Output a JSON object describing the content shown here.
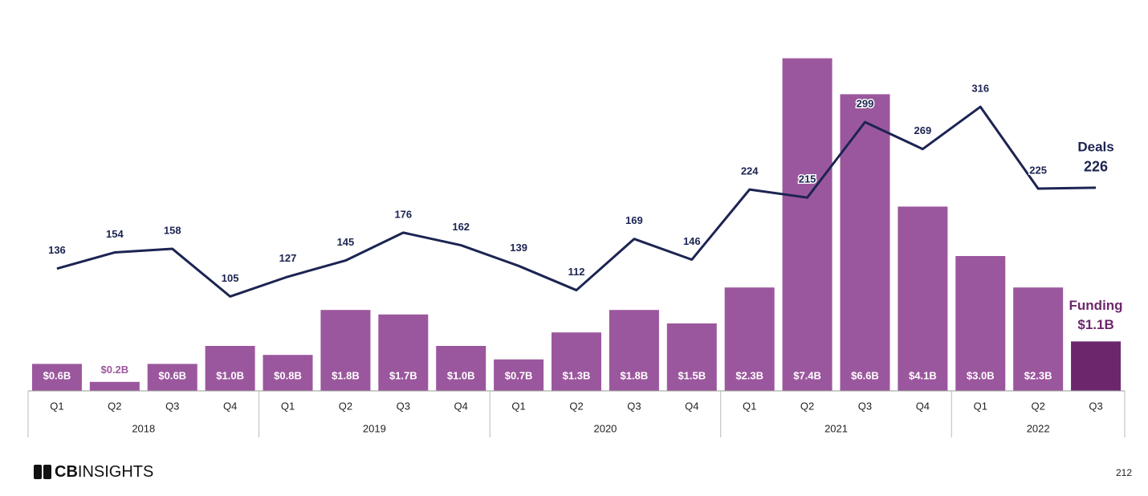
{
  "chart_data": {
    "type": "bar_line",
    "groups": [
      {
        "label": "2018",
        "categories": [
          "Q1",
          "Q2",
          "Q3",
          "Q4"
        ]
      },
      {
        "label": "2019",
        "categories": [
          "Q1",
          "Q2",
          "Q3",
          "Q4"
        ]
      },
      {
        "label": "2020",
        "categories": [
          "Q1",
          "Q2",
          "Q3",
          "Q4"
        ]
      },
      {
        "label": "2021",
        "categories": [
          "Q1",
          "Q2",
          "Q3",
          "Q4"
        ]
      },
      {
        "label": "2022",
        "categories": [
          "Q1",
          "Q2",
          "Q3"
        ]
      }
    ],
    "series": [
      {
        "name": "Funding",
        "type": "bar",
        "color": "#9b579d",
        "last_color": "#6c276c",
        "values": [
          0.6,
          0.2,
          0.6,
          1.0,
          0.8,
          1.8,
          1.7,
          1.0,
          0.7,
          1.3,
          1.8,
          1.5,
          2.3,
          7.4,
          6.6,
          4.1,
          3.0,
          2.3,
          1.1
        ],
        "value_labels": [
          "$0.6B",
          "$0.2B",
          "$0.6B",
          "$1.0B",
          "$0.8B",
          "$1.8B",
          "$1.7B",
          "$1.0B",
          "$0.7B",
          "$1.3B",
          "$1.8B",
          "$1.5B",
          "$2.3B",
          "$7.4B",
          "$6.6B",
          "$4.1B",
          "$3.0B",
          "$2.3B",
          "$1.1B"
        ]
      },
      {
        "name": "Deals",
        "type": "line",
        "axis": "y2",
        "color": "#1c2452",
        "values": [
          136,
          154,
          158,
          105,
          127,
          145,
          176,
          162,
          139,
          112,
          169,
          146,
          224,
          215,
          299,
          269,
          316,
          225,
          226
        ]
      }
    ],
    "ylim": [
      0,
      8
    ],
    "y2lim": [
      0,
      400
    ],
    "brand": [
      "CB",
      "INSIGHTS"
    ],
    "page_number": "212"
  }
}
